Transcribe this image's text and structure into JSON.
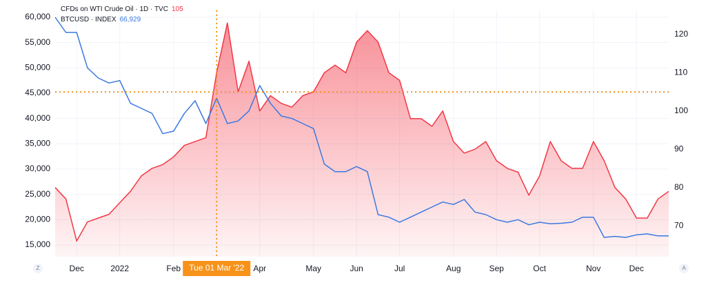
{
  "chart_data": {
    "type": "line",
    "legend": [
      {
        "text": "CFDs on WTI Crude Oil · 1D · TVC",
        "value": "105"
      },
      {
        "text": "BTCUSD · INDEX",
        "value": "66,929"
      }
    ],
    "categories": [
      null,
      null,
      "Dec",
      null,
      null,
      null,
      "2022",
      null,
      null,
      null,
      null,
      "Feb",
      null,
      null,
      null,
      "Tue 01 Mar '22",
      null,
      null,
      null,
      "Apr",
      null,
      null,
      null,
      null,
      "May",
      null,
      null,
      null,
      "Jun",
      null,
      null,
      null,
      "Jul",
      null,
      null,
      null,
      null,
      "Aug",
      null,
      null,
      null,
      "Sep",
      null,
      null,
      null,
      "Oct",
      null,
      null,
      null,
      null,
      "Nov",
      null,
      null,
      null,
      "Dec",
      null,
      null,
      null
    ],
    "series": [
      {
        "name": "WTI Crude Oil",
        "color": "#f23645",
        "axis": "y2",
        "area": true,
        "values": [
          80,
          77,
          66,
          71,
          72,
          73,
          76,
          79,
          83,
          85,
          86,
          88,
          91,
          92,
          93,
          110,
          123,
          105,
          113,
          100,
          104,
          102,
          101,
          104,
          105,
          110,
          112,
          110,
          118,
          121,
          118,
          110,
          108,
          98,
          98,
          96,
          100,
          92,
          89,
          90,
          92,
          87,
          85,
          84,
          78,
          83,
          92,
          87,
          85,
          85,
          92,
          87,
          80,
          77,
          72,
          72,
          77,
          79
        ]
      },
      {
        "name": "BTCUSD",
        "color": "#3a78e0",
        "values": [
          60000,
          57000,
          57000,
          50000,
          48000,
          47000,
          47500,
          43000,
          42000,
          41000,
          37000,
          37500,
          41000,
          43500,
          39000,
          44000,
          39000,
          39500,
          41500,
          46500,
          43000,
          40500,
          40000,
          39000,
          38000,
          31000,
          29500,
          29500,
          30500,
          29500,
          21000,
          20500,
          19500,
          20500,
          21500,
          22500,
          23500,
          23000,
          24000,
          21500,
          21000,
          20000,
          19500,
          20000,
          19000,
          19500,
          19200,
          19300,
          19500,
          20500,
          20500,
          16500,
          16700,
          16500,
          17000,
          17200,
          16800,
          16800
        ]
      }
    ],
    "ylim": [
      12682,
      61364
    ],
    "yticks": [
      {
        "value": 15000,
        "label": "15,000"
      },
      {
        "value": 20000,
        "label": "20,000"
      },
      {
        "value": 25000,
        "label": "25,000"
      },
      {
        "value": 30000,
        "label": "30,000"
      },
      {
        "value": 35000,
        "label": "35,000"
      },
      {
        "value": 40000,
        "label": "40,000"
      },
      {
        "value": 45000,
        "label": "45,000"
      },
      {
        "value": 50000,
        "label": "50,000"
      },
      {
        "value": 55000,
        "label": "55,000"
      },
      {
        "value": 60000,
        "label": "60,000"
      }
    ],
    "y2lim": [
      61.9,
      126.3
    ],
    "y2ticks": [
      70,
      80,
      90,
      100,
      110,
      120
    ],
    "grid": true,
    "crosshair": {
      "x": 15,
      "y2": 105,
      "color": "#f7931a"
    },
    "scale_buttons": [
      "Z",
      "A"
    ]
  }
}
